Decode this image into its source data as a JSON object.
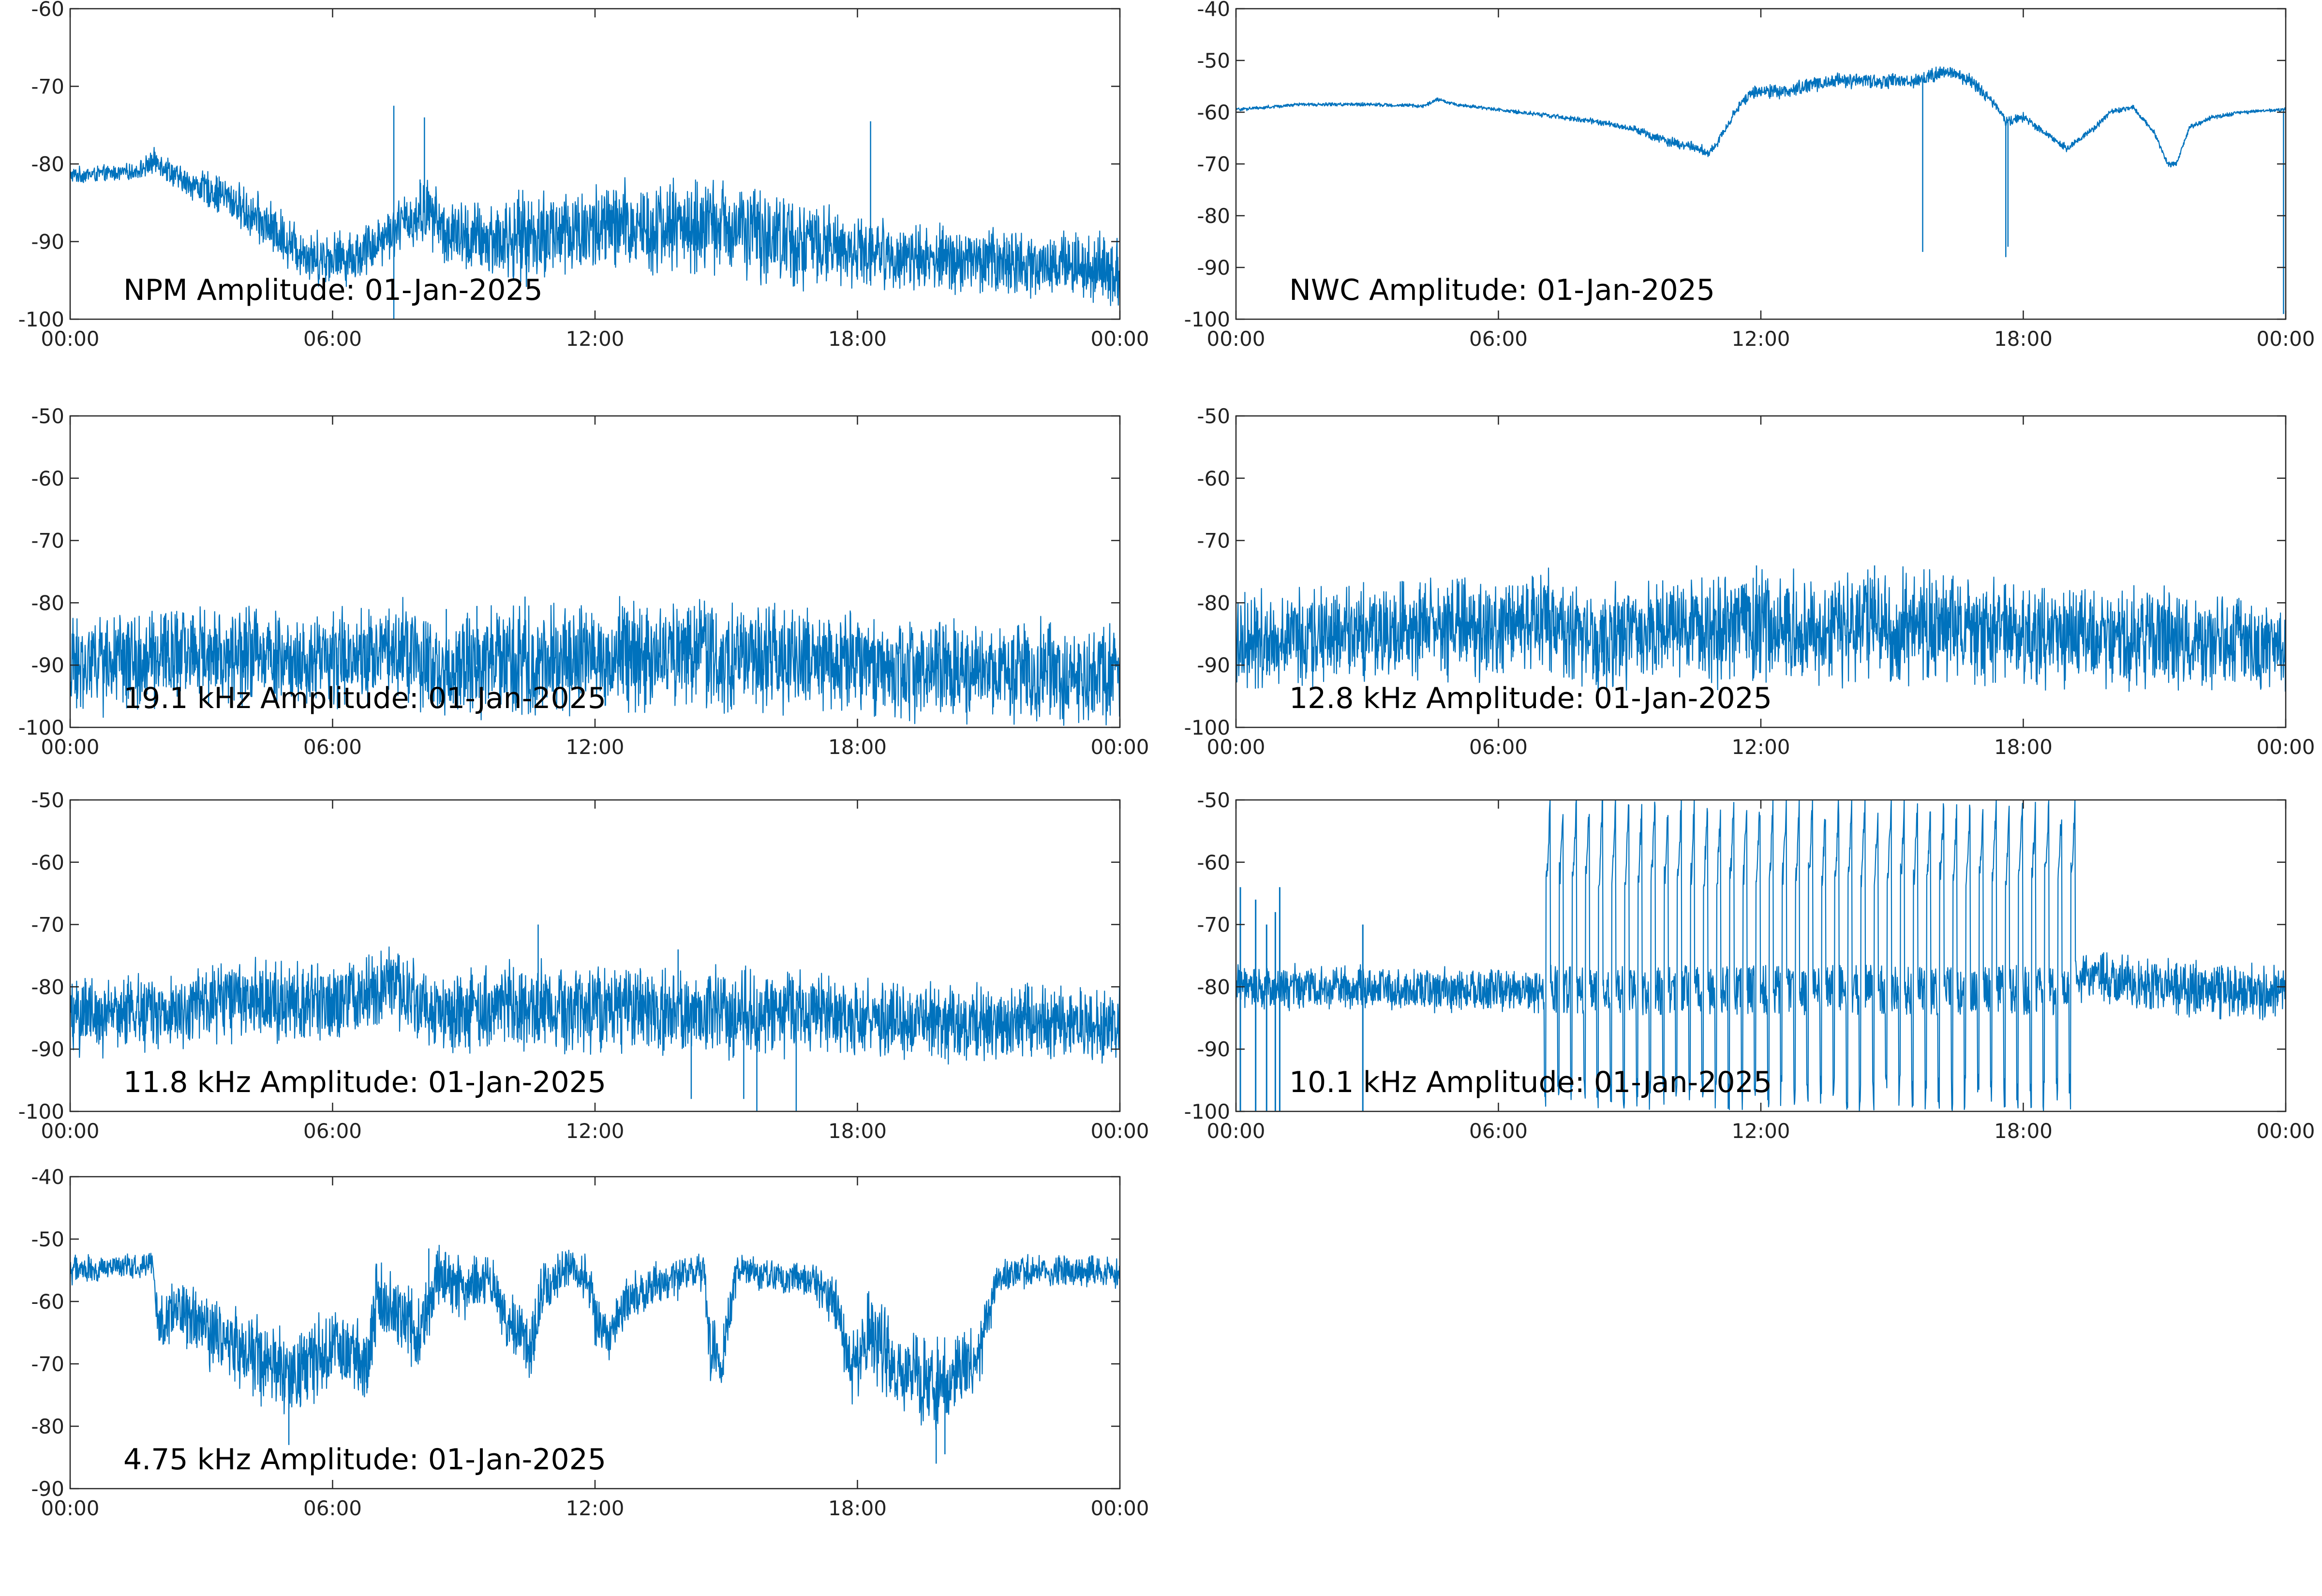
{
  "colors": {
    "trace": "#0072bd",
    "axes": "#262626",
    "background": "#ffffff"
  },
  "chart_data": [
    {
      "type": "line",
      "title": "NPM Amplitude: 01-Jan-2025",
      "xlabel": "",
      "ylabel": "",
      "xlim_hours": [
        0,
        24
      ],
      "x_ticks": [
        "00:00",
        "06:00",
        "12:00",
        "18:00",
        "00:00"
      ],
      "ylim": [
        -100,
        -60
      ],
      "y_ticks": [
        -60,
        -70,
        -80,
        -90,
        -100
      ],
      "grid": false,
      "series": [
        {
          "hours": [
            0,
            1.5,
            2.0,
            2.5,
            3.5,
            4.5,
            5.5,
            6.5,
            7.5,
            8.2,
            8.6,
            9.5,
            11,
            13,
            15,
            16.5,
            18,
            19,
            21,
            23,
            24
          ],
          "values": [
            -81.5,
            -81,
            -79.5,
            -82,
            -84,
            -88,
            -92,
            -92,
            -88,
            -86,
            -89,
            -90,
            -89,
            -88,
            -88,
            -90,
            -91,
            -92,
            -92.5,
            -93,
            -94
          ],
          "spread": [
            1.2,
            1.2,
            2,
            2,
            3,
            4,
            4,
            4,
            4,
            5,
            5,
            6,
            7,
            7,
            7,
            7,
            5,
            5,
            5,
            5,
            5
          ],
          "spikes": [
            [
              7.4,
              -72.5
            ],
            [
              7.4,
              -100
            ],
            [
              8.1,
              -74
            ],
            [
              18.3,
              -74.5
            ],
            [
              8.0,
              -82
            ]
          ]
        }
      ]
    },
    {
      "type": "line",
      "title": "NWC Amplitude: 01-Jan-2025",
      "xlabel": "",
      "ylabel": "",
      "xlim_hours": [
        0,
        24
      ],
      "x_ticks": [
        "00:00",
        "06:00",
        "12:00",
        "18:00",
        "00:00"
      ],
      "ylim": [
        -100,
        -40
      ],
      "y_ticks": [
        -40,
        -50,
        -60,
        -70,
        -80,
        -90,
        -100
      ],
      "grid": false,
      "series": [
        {
          "hours": [
            0,
            1.5,
            3,
            4.3,
            4.6,
            5,
            6,
            7,
            8,
            9,
            10,
            10.6,
            10.8,
            11,
            11.4,
            11.8,
            12.5,
            13.5,
            14.5,
            15.5,
            16.3,
            16.8,
            17.3,
            17.6,
            18,
            18.5,
            19,
            19.5,
            20,
            20.5,
            21,
            21.3,
            21.5,
            21.8,
            22.3,
            23,
            24
          ],
          "values": [
            -59.5,
            -58.5,
            -58.5,
            -58.8,
            -57.5,
            -58.5,
            -59.5,
            -60.5,
            -61.5,
            -63,
            -66,
            -67,
            -68,
            -66,
            -60,
            -56,
            -56,
            -54,
            -54,
            -54,
            -52,
            -54,
            -58,
            -62,
            -61,
            -64,
            -67,
            -64,
            -60,
            -59,
            -64,
            -70,
            -70,
            -63,
            -61,
            -60,
            -59.5
          ],
          "spread": [
            0.4,
            0.4,
            0.4,
            0.4,
            0.4,
            0.4,
            0.4,
            0.5,
            0.6,
            0.8,
            1.2,
            1.2,
            1.2,
            1.0,
            1.0,
            1.4,
            1.6,
            1.8,
            1.6,
            1.6,
            1.6,
            1.6,
            1.4,
            1.2,
            1.0,
            0.8,
            0.8,
            0.8,
            0.6,
            0.6,
            0.6,
            0.6,
            0.6,
            0.6,
            0.5,
            0.4,
            0.4
          ],
          "spikes": [
            [
              15.7,
              -87
            ],
            [
              17.6,
              -88
            ],
            [
              17.65,
              -86
            ],
            [
              23.95,
              -99
            ]
          ]
        }
      ]
    },
    {
      "type": "line",
      "title": "19.1 kHz Amplitude: 01-Jan-2025",
      "xlabel": "",
      "ylabel": "",
      "xlim_hours": [
        0,
        24
      ],
      "x_ticks": [
        "00:00",
        "06:00",
        "12:00",
        "18:00",
        "00:00"
      ],
      "ylim": [
        -100,
        -50
      ],
      "y_ticks": [
        -50,
        -60,
        -70,
        -80,
        -90,
        -100
      ],
      "grid": false,
      "series": [
        {
          "hours": [
            0,
            2,
            4,
            6,
            7.5,
            8.5,
            10,
            12,
            14,
            16,
            18,
            20,
            22,
            24
          ],
          "values": [
            -90,
            -89,
            -88,
            -89,
            -87,
            -91,
            -89,
            -89,
            -88,
            -89,
            -90,
            -91,
            -91,
            -92
          ],
          "spread": [
            9,
            9,
            9,
            9,
            9,
            9,
            10,
            10,
            10,
            10,
            9,
            9,
            9,
            9
          ],
          "spikes": [
            [
              8.6,
              -81
            ],
            [
              9.3,
              -80.5
            ],
            [
              10.4,
              -79
            ],
            [
              2.8,
              -82
            ]
          ]
        }
      ]
    },
    {
      "type": "line",
      "title": "12.8 kHz Amplitude: 01-Jan-2025",
      "xlabel": "",
      "ylabel": "",
      "xlim_hours": [
        0,
        24
      ],
      "x_ticks": [
        "00:00",
        "06:00",
        "12:00",
        "18:00",
        "00:00"
      ],
      "ylim": [
        -100,
        -50
      ],
      "y_ticks": [
        -50,
        -60,
        -70,
        -80,
        -90,
        -100
      ],
      "grid": false,
      "series": [
        {
          "hours": [
            0,
            2,
            4,
            6,
            7,
            8,
            10,
            12,
            14,
            16,
            18,
            20,
            22,
            24
          ],
          "values": [
            -86,
            -85,
            -84,
            -84,
            -82,
            -86,
            -85,
            -84,
            -84,
            -84,
            -85,
            -86,
            -86,
            -87
          ],
          "spread": [
            9,
            9,
            9,
            9,
            9,
            9,
            10,
            10,
            10,
            10,
            9,
            9,
            9,
            8
          ],
          "spikes": [
            [
              11.9,
              -74
            ],
            [
              14.6,
              -74
            ],
            [
              3.8,
              -76.5
            ]
          ]
        }
      ]
    },
    {
      "type": "line",
      "title": "11.8 kHz Amplitude: 01-Jan-2025",
      "xlabel": "",
      "ylabel": "",
      "xlim_hours": [
        0,
        24
      ],
      "x_ticks": [
        "00:00",
        "06:00",
        "12:00",
        "18:00",
        "00:00"
      ],
      "ylim": [
        -100,
        -50
      ],
      "y_ticks": [
        -50,
        -60,
        -70,
        -80,
        -90,
        -100
      ],
      "grid": false,
      "series": [
        {
          "hours": [
            0,
            2,
            4,
            6,
            7.3,
            8.5,
            10,
            12,
            14,
            16,
            18,
            20,
            22,
            24
          ],
          "values": [
            -85,
            -84,
            -82,
            -83,
            -80,
            -85,
            -83,
            -83,
            -84,
            -84,
            -85,
            -86,
            -86,
            -86
          ],
          "spread": [
            7,
            7,
            7,
            7,
            7,
            7,
            8,
            8,
            8,
            8,
            7,
            7,
            7,
            7
          ],
          "spikes": [
            [
              10.7,
              -70
            ],
            [
              14.2,
              -98
            ],
            [
              15.4,
              -98
            ],
            [
              15.7,
              -100
            ],
            [
              16.6,
              -100
            ],
            [
              13.9,
              -74
            ]
          ]
        }
      ]
    },
    {
      "type": "line",
      "title": "10.1 kHz Amplitude: 01-Jan-2025",
      "xlabel": "",
      "ylabel": "",
      "xlim_hours": [
        0,
        24
      ],
      "x_ticks": [
        "00:00",
        "06:00",
        "12:00",
        "18:00",
        "00:00"
      ],
      "ylim": [
        -100,
        -50
      ],
      "y_ticks": [
        -50,
        -60,
        -70,
        -80,
        -90,
        -100
      ],
      "grid": false,
      "series": [
        {
          "hours": [
            0,
            2,
            4,
            6,
            6.9,
            7.1,
            19.1,
            19.4,
            21,
            22.5,
            24
          ],
          "values": [
            -80,
            -80,
            -80.5,
            -80.5,
            -80.5,
            -80.5,
            -80.5,
            -78,
            -80,
            -80.5,
            -81
          ],
          "spread": [
            4,
            4,
            4,
            4,
            4,
            4,
            4,
            5,
            5,
            5,
            5
          ],
          "pulse_band_hours": [
            7.05,
            19.2
          ],
          "pulse_period_hours": 0.3,
          "pulse_range": [
            -64,
            -100
          ],
          "early_pulses": [
            [
              0.1,
              -64
            ],
            [
              0.45,
              -66
            ],
            [
              0.7,
              -70
            ],
            [
              0.9,
              -68
            ],
            [
              1.0,
              -64
            ],
            [
              2.9,
              -70
            ]
          ],
          "spikes": []
        }
      ]
    },
    {
      "type": "line",
      "title": "4.75 kHz Amplitude: 01-Jan-2025",
      "xlabel": "",
      "ylabel": "",
      "xlim_hours": [
        0,
        24
      ],
      "x_ticks": [
        "00:00",
        "06:00",
        "12:00",
        "18:00",
        "00:00"
      ],
      "ylim": [
        -90,
        -40
      ],
      "y_ticks": [
        -40,
        -50,
        -60,
        -70,
        -80,
        -90
      ],
      "grid": false,
      "series": [
        {
          "hours": [
            0,
            1,
            1.9,
            2.0,
            2.5,
            3.5,
            4.5,
            5.2,
            6,
            6.8,
            7.0,
            7.5,
            8,
            8.4,
            8.9,
            9.5,
            10,
            10.5,
            10.8,
            11.3,
            11.8,
            12,
            12.3,
            12.7,
            13.5,
            14.5,
            14.6,
            14.9,
            15.2,
            15.3,
            16,
            17,
            17.5,
            17.9,
            18.3,
            19,
            20,
            20.8,
            21.2,
            22,
            23,
            24
          ],
          "values": [
            -55,
            -54.5,
            -54,
            -64,
            -62,
            -66,
            -70,
            -72,
            -67,
            -70,
            -60,
            -62,
            -65,
            -56,
            -58,
            -56,
            -63,
            -68,
            -58,
            -55,
            -56,
            -62,
            -66,
            -60,
            -57,
            -55,
            -68,
            -70,
            -57,
            -55,
            -56,
            -57,
            -60,
            -72,
            -65,
            -72,
            -73,
            -68,
            -56,
            -55,
            -55,
            -55.5
          ],
          "spread": [
            2.5,
            2.5,
            2.5,
            6,
            6,
            7,
            8,
            8,
            7,
            8,
            7,
            7,
            7,
            6,
            6,
            5,
            6,
            6,
            6,
            4,
            4,
            5,
            5,
            5,
            4,
            4,
            6,
            6,
            4,
            3,
            3,
            3,
            5,
            8,
            8,
            8,
            8,
            7,
            3,
            3,
            3,
            3
          ],
          "spikes": [
            [
              5.0,
              -83
            ],
            [
              19.8,
              -86
            ],
            [
              20.0,
              -84.5
            ],
            [
              8.2,
              -51.5
            ]
          ]
        }
      ]
    }
  ]
}
